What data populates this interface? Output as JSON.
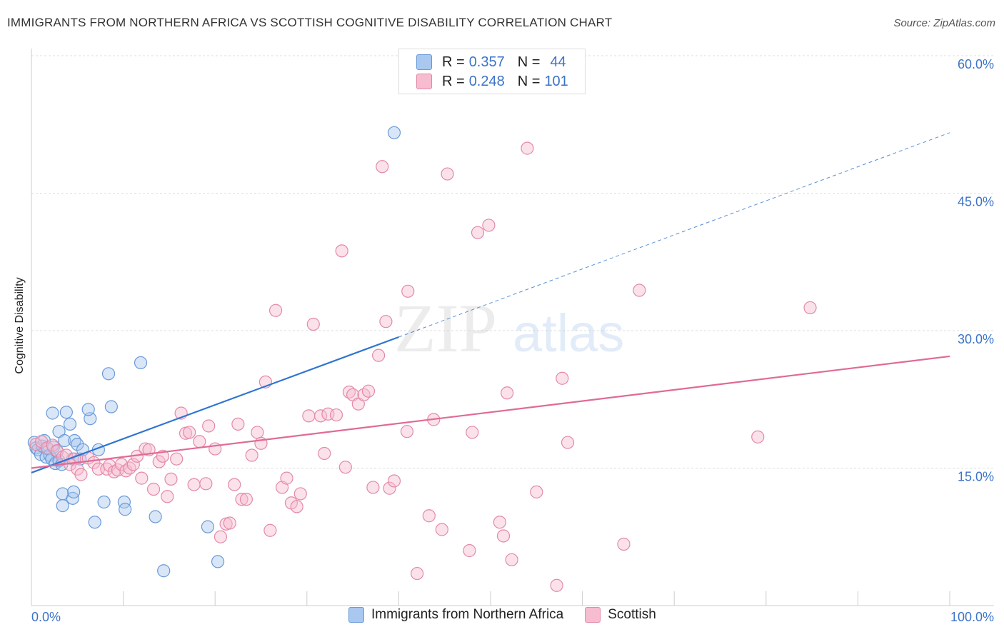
{
  "title": "IMMIGRANTS FROM NORTHERN AFRICA VS SCOTTISH COGNITIVE DISABILITY CORRELATION CHART",
  "source": "Source: ZipAtlas.com",
  "watermark": {
    "zip": "ZIP",
    "atlas": "atlas"
  },
  "legend": {
    "r_label": "R =",
    "n_label": "N =",
    "rows": [
      {
        "r": "0.357",
        "n": "44",
        "color": "#a9c8f0",
        "border": "#6a9ad8"
      },
      {
        "r": "0.248",
        "n": "101",
        "color": "#f7bcd0",
        "border": "#e38aa8"
      }
    ]
  },
  "chart_data": {
    "type": "scatter",
    "xlabel": "",
    "ylabel": "Cognitive Disability",
    "xlim": [
      0,
      100
    ],
    "ylim": [
      0,
      65
    ],
    "x_tick_labels": [
      "0.0%",
      "100.0%"
    ],
    "y_tick_labels": [
      "15.0%",
      "30.0%",
      "45.0%",
      "60.0%"
    ],
    "y_ticks": [
      15,
      30,
      45,
      60
    ],
    "series": [
      {
        "name": "Immigrants from Northern Africa",
        "color": "#6a9ad8",
        "fill": "#a9c8f0",
        "points": [
          [
            0.3,
            17.8
          ],
          [
            0.5,
            17.2
          ],
          [
            0.7,
            17.0
          ],
          [
            1.0,
            16.5
          ],
          [
            1.2,
            17.4
          ],
          [
            1.4,
            18.0
          ],
          [
            1.6,
            16.2
          ],
          [
            1.8,
            17.1
          ],
          [
            2.0,
            16.4
          ],
          [
            2.2,
            16.0
          ],
          [
            2.4,
            17.3
          ],
          [
            2.6,
            15.5
          ],
          [
            2.8,
            16.8
          ],
          [
            3.0,
            15.8
          ],
          [
            2.3,
            21.0
          ],
          [
            3.0,
            19.0
          ],
          [
            3.3,
            15.4
          ],
          [
            3.6,
            18.0
          ],
          [
            3.8,
            21.1
          ],
          [
            4.2,
            19.8
          ],
          [
            4.5,
            16.0
          ],
          [
            4.7,
            18.0
          ],
          [
            5.0,
            17.6
          ],
          [
            5.3,
            16.0
          ],
          [
            5.6,
            17.0
          ],
          [
            6.4,
            20.4
          ],
          [
            6.2,
            21.4
          ],
          [
            7.3,
            17.0
          ],
          [
            8.4,
            25.3
          ],
          [
            8.7,
            21.7
          ],
          [
            11.9,
            26.5
          ],
          [
            3.4,
            12.2
          ],
          [
            4.5,
            11.7
          ],
          [
            4.6,
            12.4
          ],
          [
            7.9,
            11.3
          ],
          [
            10.1,
            11.3
          ],
          [
            3.4,
            10.9
          ],
          [
            10.2,
            10.5
          ],
          [
            6.9,
            9.1
          ],
          [
            13.5,
            9.7
          ],
          [
            19.2,
            8.6
          ],
          [
            14.4,
            3.8
          ],
          [
            20.3,
            4.8
          ],
          [
            39.5,
            51.6
          ]
        ]
      },
      {
        "name": "Scottish",
        "color": "#e38aa8",
        "fill": "#f7bcd0",
        "points": [
          [
            0.5,
            17.6
          ],
          [
            1.1,
            17.9
          ],
          [
            1.7,
            17.2
          ],
          [
            2.3,
            17.5
          ],
          [
            2.8,
            16.9
          ],
          [
            3.4,
            16.2
          ],
          [
            3.8,
            16.4
          ],
          [
            4.7,
            16.0
          ],
          [
            4.2,
            15.4
          ],
          [
            5.0,
            14.9
          ],
          [
            5.4,
            14.3
          ],
          [
            6.2,
            16.1
          ],
          [
            6.8,
            15.6
          ],
          [
            7.3,
            14.9
          ],
          [
            8.2,
            14.9
          ],
          [
            8.5,
            15.3
          ],
          [
            9.0,
            14.6
          ],
          [
            9.4,
            14.8
          ],
          [
            9.8,
            15.4
          ],
          [
            10.3,
            14.7
          ],
          [
            10.7,
            15.0
          ],
          [
            11.1,
            15.4
          ],
          [
            11.5,
            16.3
          ],
          [
            12.0,
            13.9
          ],
          [
            12.4,
            17.1
          ],
          [
            12.8,
            17.0
          ],
          [
            13.3,
            12.7
          ],
          [
            13.9,
            15.7
          ],
          [
            14.3,
            16.3
          ],
          [
            14.8,
            11.9
          ],
          [
            15.2,
            13.8
          ],
          [
            15.8,
            16.0
          ],
          [
            16.3,
            21.0
          ],
          [
            16.8,
            18.8
          ],
          [
            17.2,
            18.9
          ],
          [
            17.7,
            13.2
          ],
          [
            18.3,
            17.9
          ],
          [
            19.0,
            13.3
          ],
          [
            19.3,
            19.6
          ],
          [
            20.0,
            17.1
          ],
          [
            20.6,
            7.5
          ],
          [
            21.2,
            8.9
          ],
          [
            21.6,
            9.0
          ],
          [
            22.1,
            13.2
          ],
          [
            22.5,
            19.8
          ],
          [
            22.9,
            11.6
          ],
          [
            23.4,
            11.6
          ],
          [
            24.0,
            16.4
          ],
          [
            24.6,
            18.9
          ],
          [
            25.0,
            17.7
          ],
          [
            25.5,
            24.4
          ],
          [
            26.0,
            8.2
          ],
          [
            26.6,
            32.2
          ],
          [
            27.3,
            12.9
          ],
          [
            27.8,
            13.9
          ],
          [
            28.3,
            11.2
          ],
          [
            28.9,
            10.8
          ],
          [
            29.3,
            12.2
          ],
          [
            30.2,
            20.7
          ],
          [
            30.7,
            30.7
          ],
          [
            31.5,
            20.7
          ],
          [
            31.9,
            16.6
          ],
          [
            32.3,
            20.9
          ],
          [
            33.2,
            20.8
          ],
          [
            33.8,
            38.7
          ],
          [
            34.2,
            15.1
          ],
          [
            34.6,
            23.3
          ],
          [
            35.0,
            23.0
          ],
          [
            35.6,
            22.0
          ],
          [
            36.2,
            23.0
          ],
          [
            36.7,
            23.4
          ],
          [
            37.2,
            12.9
          ],
          [
            37.8,
            27.3
          ],
          [
            38.2,
            47.9
          ],
          [
            38.6,
            31.0
          ],
          [
            39.0,
            12.8
          ],
          [
            39.5,
            13.6
          ],
          [
            41.0,
            34.3
          ],
          [
            40.9,
            19.0
          ],
          [
            42.0,
            3.5
          ],
          [
            43.3,
            9.8
          ],
          [
            43.8,
            20.3
          ],
          [
            44.7,
            8.3
          ],
          [
            45.3,
            47.1
          ],
          [
            47.7,
            6.0
          ],
          [
            48.0,
            18.9
          ],
          [
            48.6,
            40.7
          ],
          [
            49.8,
            41.5
          ],
          [
            51.0,
            9.1
          ],
          [
            51.4,
            7.6
          ],
          [
            51.8,
            23.2
          ],
          [
            52.3,
            5.0
          ],
          [
            54.0,
            49.9
          ],
          [
            55.0,
            12.4
          ],
          [
            57.2,
            2.2
          ],
          [
            57.8,
            24.8
          ],
          [
            58.4,
            17.8
          ],
          [
            64.5,
            6.7
          ],
          [
            66.2,
            34.4
          ],
          [
            79.1,
            18.4
          ],
          [
            84.8,
            32.5
          ]
        ]
      }
    ],
    "trend_lines": [
      {
        "series": "Immigrants from Northern Africa",
        "solid": [
          [
            0,
            14.5
          ],
          [
            40,
            29.3
          ]
        ],
        "dashed": [
          [
            40,
            29.3
          ],
          [
            100,
            51.6
          ]
        ]
      },
      {
        "series": "Scottish",
        "solid": [
          [
            0,
            15.0
          ],
          [
            100,
            27.2
          ]
        ]
      }
    ],
    "grid": true,
    "legend_position": "top-center"
  }
}
